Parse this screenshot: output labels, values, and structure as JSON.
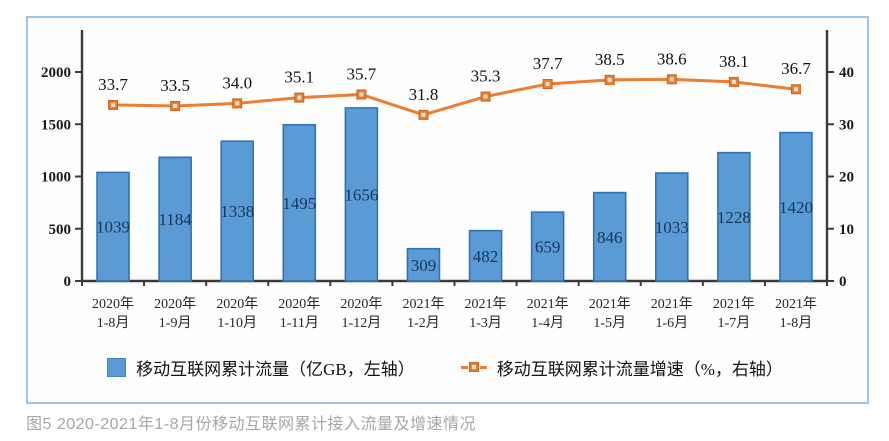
{
  "caption": "图5 2020-2021年1-8月份移动互联网累计接入流量及增速情况",
  "chart_data": {
    "type": "bar",
    "subtype": "bar+line dual axis",
    "categories": [
      [
        "2020年",
        "1-8月"
      ],
      [
        "2020年",
        "1-9月"
      ],
      [
        "2020年",
        "1-10月"
      ],
      [
        "2020年",
        "1-11月"
      ],
      [
        "2020年",
        "1-12月"
      ],
      [
        "2021年",
        "1-2月"
      ],
      [
        "2021年",
        "1-3月"
      ],
      [
        "2021年",
        "1-4月"
      ],
      [
        "2021年",
        "1-5月"
      ],
      [
        "2021年",
        "1-6月"
      ],
      [
        "2021年",
        "1-7月"
      ],
      [
        "2021年",
        "1-8月"
      ]
    ],
    "series": [
      {
        "name": "移动互联网累计流量（亿GB，左轴）",
        "type": "bar",
        "axis": "left",
        "values": [
          1039,
          1184,
          1338,
          1495,
          1656,
          309,
          482,
          659,
          846,
          1033,
          1228,
          1420
        ],
        "color": "#5B9BD5",
        "border_color": "#2E75B6",
        "label_color": "#16365C"
      },
      {
        "name": "移动互联网累计流量增速（%，右轴）",
        "type": "line",
        "axis": "right",
        "values": [
          33.7,
          33.5,
          34.0,
          35.1,
          35.7,
          31.8,
          35.3,
          37.7,
          38.5,
          38.6,
          38.1,
          36.7
        ],
        "labels": [
          "33.7",
          "33.5",
          "34.0",
          "35.1",
          "35.7",
          "31.8",
          "35.3",
          "37.7",
          "38.5",
          "38.6",
          "38.1",
          "36.7"
        ],
        "color": "#ED7D31",
        "marker_fill": "#FCE4D6",
        "label_color": "#111111"
      }
    ],
    "left_axis": {
      "ticks": [
        0,
        500,
        1000,
        1500,
        2000
      ],
      "lim": [
        0,
        2400
      ],
      "unit": "亿GB"
    },
    "right_axis": {
      "ticks": [
        0,
        10,
        20,
        30,
        40
      ],
      "lim": [
        0,
        48
      ],
      "unit": "%"
    },
    "grid": false,
    "legend_position": "bottom",
    "title": ""
  },
  "colors": {
    "panel_border": "#9DC3E6",
    "axis": "#3A3A3A",
    "tick_label": "#1a1a1a",
    "category_label": "#262626",
    "caption": "#A6A6A6"
  }
}
